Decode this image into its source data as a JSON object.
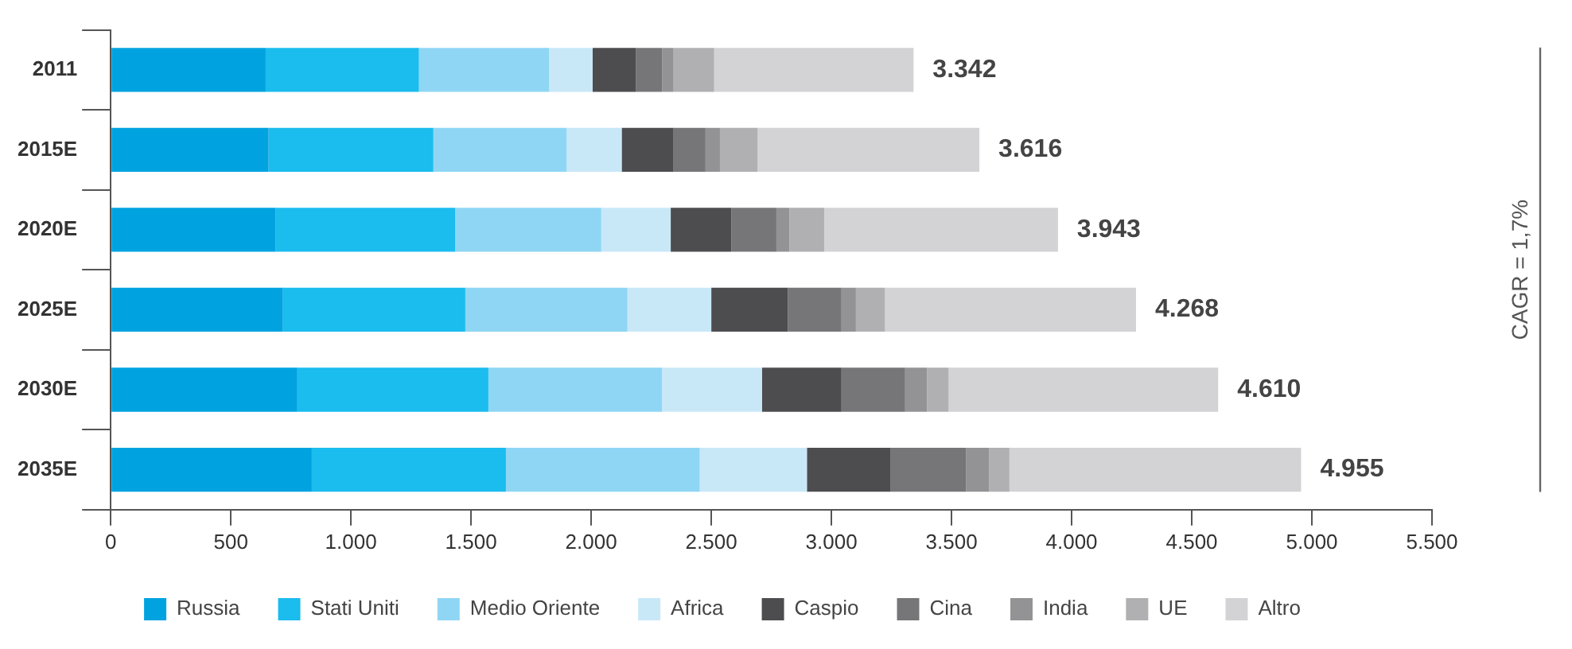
{
  "chart_data": {
    "type": "bar",
    "orientation": "horizontal",
    "stacked": true,
    "categories": [
      "2011",
      "2015E",
      "2020E",
      "2025E",
      "2030E",
      "2035E"
    ],
    "series": [
      {
        "name": "Russia",
        "color": "#00a3e0",
        "values": [
          645,
          657,
          687,
          717,
          777,
          837
        ]
      },
      {
        "name": "Stati Uniti",
        "color": "#1bbcee",
        "values": [
          638,
          686,
          747,
          759,
          795,
          808
        ]
      },
      {
        "name": "Medio Oriente",
        "color": "#8fd6f5",
        "values": [
          542,
          555,
          608,
          675,
          723,
          807
        ]
      },
      {
        "name": "Africa",
        "color": "#c8e8f8",
        "values": [
          181,
          229,
          289,
          349,
          416,
          446
        ]
      },
      {
        "name": "Caspio",
        "color": "#4d4d4f",
        "values": [
          181,
          216,
          253,
          319,
          331,
          349
        ]
      },
      {
        "name": "Cina",
        "color": "#767678",
        "values": [
          108,
          133,
          187,
          223,
          265,
          313
        ]
      },
      {
        "name": "India",
        "color": "#939395",
        "values": [
          48,
          60,
          54,
          60,
          91,
          97
        ]
      },
      {
        "name": "UE",
        "color": "#b0b0b2",
        "values": [
          169,
          157,
          145,
          121,
          90,
          84
        ]
      },
      {
        "name": "Altro",
        "color": "#d3d3d5",
        "values": [
          830,
          923,
          973,
          1045,
          1122,
          1214
        ]
      }
    ],
    "totals": [
      "3.342",
      "3.616",
      "3.943",
      "4.268",
      "4.610",
      "4.955"
    ],
    "xlim": [
      0,
      5500
    ],
    "xticks": [
      0,
      {
        "value": 500,
        "label": "500"
      },
      {
        "value": 1000,
        "label": "1.000"
      },
      {
        "value": 1500,
        "label": "1.500"
      },
      {
        "value": 2000,
        "label": "2.000"
      },
      {
        "value": 2500,
        "label": "2.500"
      },
      {
        "value": 3000,
        "label": "3.000"
      },
      {
        "value": 3500,
        "label": "3.500"
      },
      {
        "value": 4000,
        "label": "4.000"
      },
      {
        "value": 4500,
        "label": "4.500"
      },
      {
        "value": 5000,
        "label": "5.000"
      },
      {
        "value": 5500,
        "label": "5.500"
      }
    ],
    "annotations": [
      "CAGR = 1,7%"
    ],
    "grid": false,
    "legend": "bottom"
  }
}
